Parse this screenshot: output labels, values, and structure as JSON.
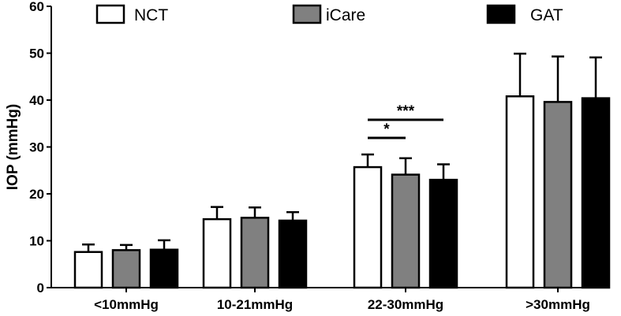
{
  "chart_data": {
    "type": "bar",
    "title": "",
    "xlabel": "",
    "ylabel": "IOP (mmHg)",
    "ylim": [
      0,
      60
    ],
    "yticks": [
      "0",
      "10",
      "20",
      "30",
      "40",
      "50",
      "60"
    ],
    "grid": false,
    "legend_position": "top",
    "categories": [
      "<10mmHg",
      "10-21mmHg",
      "22-30mmHg",
      ">30mmHg"
    ],
    "series": [
      {
        "name": "NCT",
        "color": "#ffffff",
        "values": [
          7.6,
          14.6,
          25.7,
          40.8
        ],
        "errors": [
          1.6,
          2.6,
          2.7,
          9.1
        ]
      },
      {
        "name": "iCare",
        "color": "#808080",
        "values": [
          8.0,
          14.9,
          24.1,
          39.6
        ],
        "errors": [
          1.1,
          2.2,
          3.5,
          9.7
        ]
      },
      {
        "name": "GAT",
        "color": "#000000",
        "values": [
          8.1,
          14.3,
          23.0,
          40.4
        ],
        "errors": [
          2.0,
          1.8,
          3.3,
          8.7
        ]
      }
    ],
    "annotations": [
      {
        "text": "***",
        "category": "22-30mmHg",
        "from_series": "NCT",
        "to_series": "GAT"
      },
      {
        "text": "*",
        "category": "22-30mmHg",
        "from_series": "NCT",
        "to_series": "iCare"
      }
    ]
  }
}
